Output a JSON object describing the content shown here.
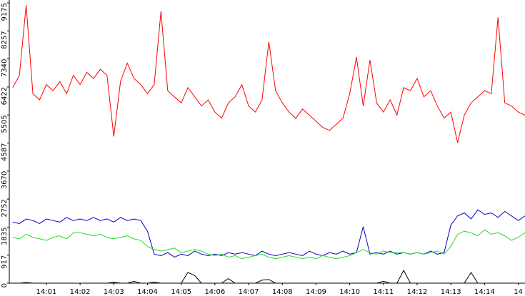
{
  "chart_data": {
    "type": "line",
    "x": [
      0,
      0.2,
      0.4,
      0.6,
      0.8,
      1.0,
      1.2,
      1.4,
      1.6,
      1.8,
      2.0,
      2.2,
      2.4,
      2.6,
      2.8,
      3.0,
      3.2,
      3.4,
      3.6,
      3.8,
      4.0,
      4.2,
      4.4,
      4.6,
      4.8,
      5.0,
      5.2,
      5.4,
      5.6,
      5.8,
      6.0,
      6.2,
      6.4,
      6.6,
      6.8,
      7.0,
      7.2,
      7.4,
      7.6,
      7.8,
      8.0,
      8.2,
      8.4,
      8.6,
      8.8,
      9.0,
      9.2,
      9.4,
      9.6,
      9.8,
      10.0,
      10.2,
      10.4,
      10.6,
      10.8,
      11.0,
      11.2,
      11.4,
      11.6,
      11.8,
      12.0,
      12.2,
      12.4,
      12.6,
      12.8,
      13.0,
      13.2,
      13.4,
      13.6,
      13.8,
      14.0,
      14.2,
      14.4,
      14.6,
      14.8,
      15.0,
      15.2
    ],
    "series": [
      {
        "color": "#ff0000",
        "values": [
          6400,
          6800,
          9100,
          6200,
          6000,
          6500,
          6300,
          6600,
          6200,
          6800,
          6500,
          6900,
          6700,
          7000,
          6800,
          4800,
          6600,
          7200,
          6700,
          6500,
          6200,
          6500,
          8900,
          6300,
          6100,
          5900,
          6400,
          6100,
          5800,
          6000,
          5600,
          5400,
          5900,
          6100,
          6500,
          5800,
          5600,
          6000,
          7900,
          6300,
          5900,
          5600,
          5400,
          5700,
          5500,
          5300,
          5100,
          5000,
          5200,
          5400,
          6200,
          7400,
          5800,
          7300,
          5900,
          5600,
          6000,
          5500,
          6400,
          6300,
          6700,
          6100,
          6300,
          5800,
          5400,
          5600,
          4600,
          5500,
          5900,
          6100,
          6300,
          6200,
          8700,
          5900,
          5800,
          5600,
          5500
        ]
      },
      {
        "color": "#0000cc",
        "values": [
          2000,
          1950,
          2100,
          2050,
          1950,
          2100,
          2050,
          2000,
          2150,
          2050,
          2100,
          2050,
          2150,
          2050,
          2100,
          2000,
          2150,
          2050,
          2100,
          2050,
          1700,
          950,
          900,
          1000,
          850,
          950,
          900,
          1050,
          950,
          900,
          950,
          900,
          1000,
          950,
          1000,
          950,
          900,
          1050,
          950,
          900,
          950,
          1000,
          950,
          900,
          1050,
          950,
          900,
          1000,
          950,
          1050,
          950,
          1000,
          1850,
          950,
          1000,
          950,
          1050,
          950,
          1000,
          950,
          1000,
          950,
          1050,
          950,
          1000,
          1900,
          2200,
          2300,
          2100,
          2400,
          2250,
          2300,
          2150,
          2350,
          2200,
          2050,
          2200
        ]
      },
      {
        "color": "#22dd22",
        "values": [
          1500,
          1450,
          1600,
          1500,
          1450,
          1400,
          1500,
          1550,
          1450,
          1650,
          1650,
          1600,
          1550,
          1600,
          1500,
          1450,
          1500,
          1550,
          1450,
          1400,
          1200,
          1100,
          1050,
          1100,
          1150,
          1000,
          1050,
          1100,
          1050,
          950,
          900,
          950,
          850,
          900,
          800,
          850,
          900,
          950,
          850,
          800,
          850,
          900,
          850,
          800,
          850,
          800,
          900,
          850,
          800,
          850,
          900,
          1000,
          1100,
          1000,
          950,
          1050,
          1000,
          1000,
          1000,
          950,
          1000,
          950,
          1000,
          1050,
          950,
          1200,
          1600,
          1700,
          1650,
          1550,
          1750,
          1600,
          1650,
          1550,
          1400,
          1500,
          1650
        ]
      },
      {
        "color": "#000000",
        "values": [
          0,
          0,
          20,
          0,
          0,
          0,
          0,
          0,
          0,
          0,
          0,
          0,
          0,
          0,
          0,
          30,
          0,
          0,
          60,
          0,
          0,
          30,
          0,
          0,
          0,
          0,
          350,
          250,
          0,
          0,
          0,
          0,
          150,
          0,
          0,
          0,
          0,
          100,
          120,
          0,
          0,
          0,
          0,
          0,
          0,
          0,
          0,
          0,
          0,
          0,
          0,
          0,
          0,
          0,
          0,
          60,
          0,
          0,
          420,
          0,
          0,
          0,
          0,
          0,
          0,
          0,
          0,
          0,
          350,
          0,
          0,
          0,
          0,
          0,
          0,
          0,
          0
        ]
      }
    ],
    "xlim": [
      -0.1,
      15.2
    ],
    "xticks": [
      {
        "value": 1,
        "label": "14:01"
      },
      {
        "value": 2,
        "label": "14:02"
      },
      {
        "value": 3,
        "label": "14:03"
      },
      {
        "value": 4,
        "label": "14:04"
      },
      {
        "value": 5,
        "label": "14:05"
      },
      {
        "value": 6,
        "label": "14:06"
      },
      {
        "value": 7,
        "label": "14:07"
      },
      {
        "value": 8,
        "label": "14:08"
      },
      {
        "value": 9,
        "label": "14:09"
      },
      {
        "value": 10,
        "label": "14:10"
      },
      {
        "value": 11,
        "label": "14:11"
      },
      {
        "value": 12,
        "label": "14:12"
      },
      {
        "value": 13,
        "label": "14:13"
      },
      {
        "value": 14,
        "label": "14:14"
      },
      {
        "value": 15,
        "label": "14"
      }
    ],
    "ylim": [
      0,
      9175
    ],
    "yticks": [
      0,
      917,
      1835,
      2752,
      3670,
      4587,
      5505,
      6422,
      7340,
      8257,
      9175
    ]
  }
}
